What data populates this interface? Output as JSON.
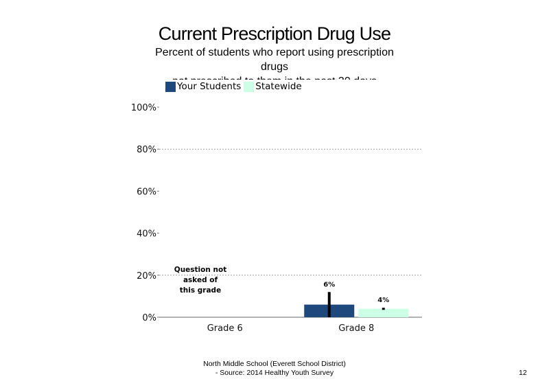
{
  "title": "Current Prescription Drug Use",
  "subtitle_lines": [
    "Percent of students  who report using prescription",
    "drugs",
    "not prescribed to them in the past 30 days"
  ],
  "legend": [
    {
      "label": "Your Students",
      "color": "#1f497d"
    },
    {
      "label": "Statewide",
      "color": "#ccffe5"
    }
  ],
  "note_lines": [
    "Question not",
    "asked of",
    "this grade"
  ],
  "footer_lines": [
    "North Middle School (Everett School District)",
    "- Source: 2014 Healthy  Youth Survey"
  ],
  "page_number": "12",
  "chart_data": {
    "type": "bar",
    "title": "Current Prescription Drug Use",
    "categories": [
      "Grade 6",
      "Grade 8"
    ],
    "series": [
      {
        "name": "Your Students",
        "color": "#1f497d",
        "values": [
          null,
          6
        ],
        "error": [
          null,
          [
            0,
            12
          ]
        ]
      },
      {
        "name": "Statewide",
        "color": "#ccffe5",
        "values": [
          null,
          4
        ],
        "error": [
          null,
          [
            3.5,
            4.5
          ]
        ]
      }
    ],
    "data_labels": [
      [
        null,
        "6%"
      ],
      [
        null,
        "4%"
      ]
    ],
    "yticks": [
      "0%",
      "20%",
      "40%",
      "60%",
      "80%",
      "100%"
    ],
    "ylim": [
      0,
      100
    ],
    "grid": "dotted horizontal at 20% and 80%",
    "legend_position": "top-left"
  }
}
